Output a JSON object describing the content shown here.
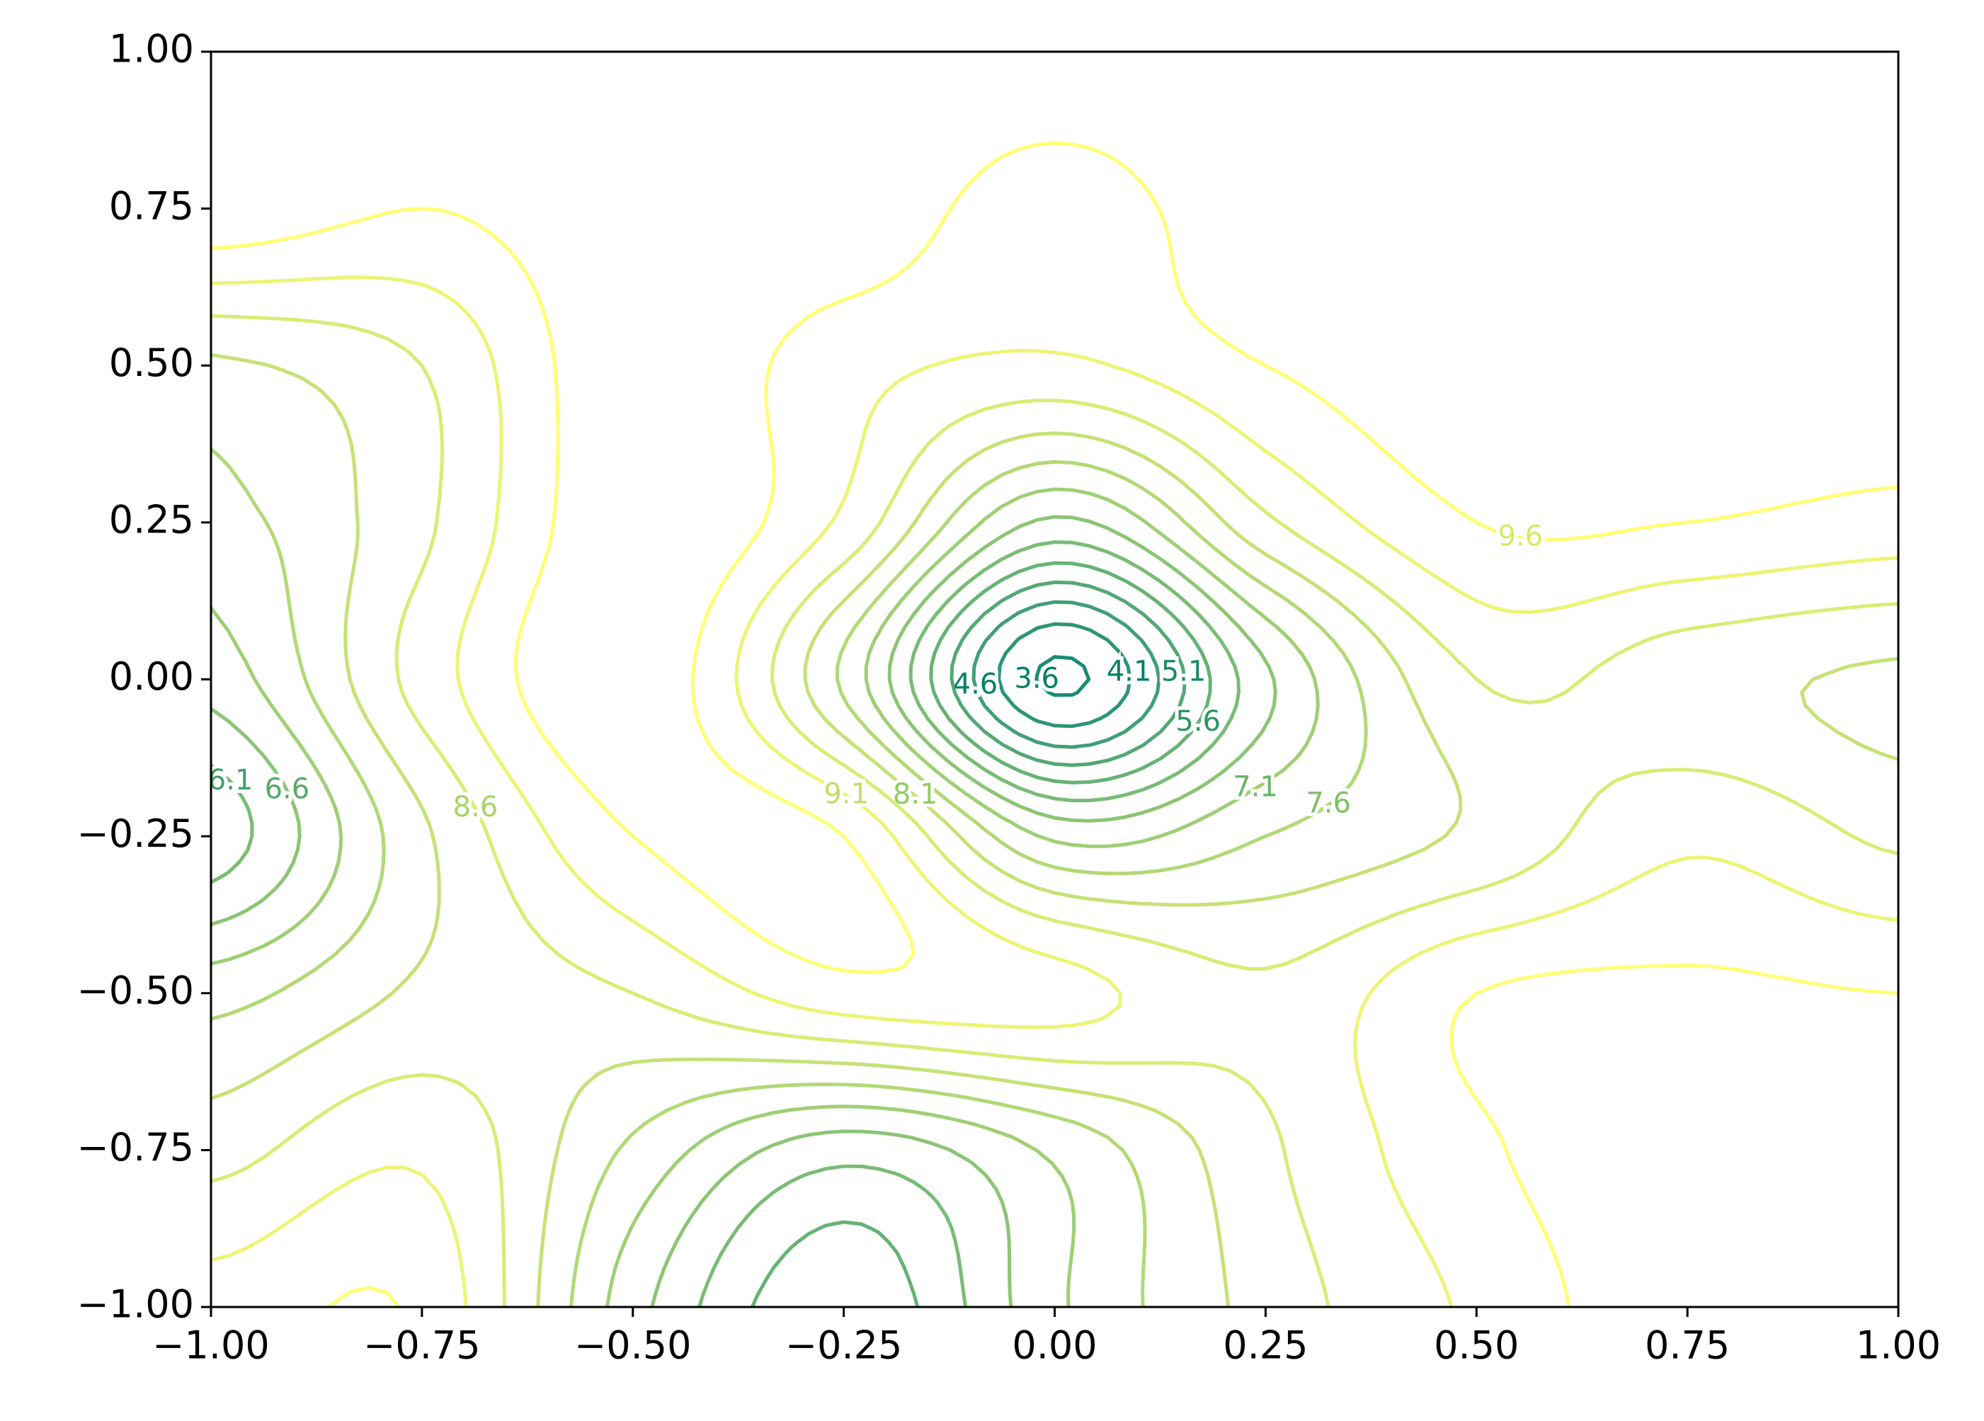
{
  "chart_data": {
    "type": "contour",
    "xlim": [
      -1,
      1
    ],
    "ylim": [
      -1,
      1
    ],
    "xticks": [
      {
        "value": -1,
        "label": "−1.00"
      },
      {
        "value": -0.75,
        "label": "−0.75"
      },
      {
        "value": -0.5,
        "label": "−0.50"
      },
      {
        "value": -0.25,
        "label": "−0.25"
      },
      {
        "value": 0,
        "label": "0.00"
      },
      {
        "value": 0.25,
        "label": "0.25"
      },
      {
        "value": 0.5,
        "label": "0.50"
      },
      {
        "value": 0.75,
        "label": "0.75"
      },
      {
        "value": 1,
        "label": "1.00"
      }
    ],
    "yticks": [
      {
        "value": -1,
        "label": "−1.00"
      },
      {
        "value": -0.75,
        "label": "−0.75"
      },
      {
        "value": -0.5,
        "label": "−0.50"
      },
      {
        "value": -0.25,
        "label": "−0.25"
      },
      {
        "value": 0,
        "label": "0.00"
      },
      {
        "value": 0.25,
        "label": "0.25"
      },
      {
        "value": 0.5,
        "label": "0.50"
      },
      {
        "value": 0.75,
        "label": "0.75"
      },
      {
        "value": 1,
        "label": "1.00"
      }
    ],
    "levels": [
      3.6,
      4.1,
      4.6,
      5.1,
      5.6,
      6.1,
      6.6,
      7.1,
      7.6,
      8.1,
      8.6,
      9.1,
      9.6
    ],
    "colors": [
      "#008066",
      "#158a66",
      "#2b9566",
      "#409f66",
      "#55aa66",
      "#6ab566",
      "#80bf66",
      "#95ca66",
      "#aad566",
      "#bfdf66",
      "#d5ea66",
      "#eaf466",
      "#ffff66"
    ],
    "x": [
      -1,
      -0.75,
      -0.5,
      -0.25,
      0,
      0.25,
      0.5,
      0.75,
      1
    ],
    "y": [
      1,
      0.75,
      0.5,
      0.25,
      0,
      -0.25,
      -0.5,
      -0.75,
      -1
    ],
    "z": [
      [
        10,
        10,
        10,
        10,
        10,
        10,
        10,
        10,
        10
      ],
      [
        10,
        9.6,
        10,
        10,
        9.3,
        10,
        10,
        10,
        10
      ],
      [
        8.0,
        8.6,
        10,
        9.3,
        9.0,
        9.6,
        10,
        10,
        10
      ],
      [
        7.4,
        8.5,
        10,
        9.0,
        6.5,
        8.5,
        9.6,
        9.6,
        9.4
      ],
      [
        6.8,
        8.8,
        10,
        7.5,
        3.5,
        6.5,
        8.6,
        8.3,
        8.0
      ],
      [
        5.8,
        8.0,
        9.6,
        9.6,
        7.0,
        7.6,
        8.2,
        9.0,
        8.5
      ],
      [
        7.4,
        8.2,
        8.6,
        9.4,
        9.3,
        8.7,
        9.6,
        9.7,
        9.6
      ],
      [
        8.4,
        9.0,
        7.5,
        6.3,
        7.2,
        8.5,
        9.5,
        10,
        10
      ],
      [
        9.3,
        9.5,
        6.8,
        5.2,
        7.0,
        8.3,
        9.2,
        10,
        10
      ]
    ]
  }
}
